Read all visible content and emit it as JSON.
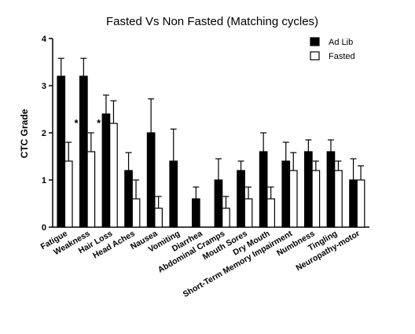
{
  "chart_data": {
    "type": "bar",
    "title": "Fasted  Vs Non Fasted  (Matching cycles)",
    "xlabel": "",
    "ylabel": "CTC Grade",
    "ylim": [
      0,
      4
    ],
    "yticks": [
      0,
      1,
      2,
      3,
      4
    ],
    "grid": false,
    "legend_position": "top-right",
    "categories": [
      "Fatigue",
      "Weakness",
      "Hair Loss",
      "Head Aches",
      "Nausea",
      "Vomiting",
      "Diarrhea",
      "Abdominal Cramps",
      "Mouth Sores",
      "Dry Mouth",
      "Short-Term Memory Impairment",
      "Numbness",
      "Tingling",
      "Neuropathy-motor"
    ],
    "series": [
      {
        "name": "Ad Lib",
        "fill": "#000000",
        "values": [
          3.2,
          3.2,
          2.4,
          1.2,
          2.0,
          1.4,
          0.6,
          1.0,
          1.2,
          1.6,
          1.4,
          1.6,
          1.6,
          1.0
        ],
        "error": [
          0.38,
          0.38,
          0.4,
          0.38,
          0.72,
          0.68,
          0.25,
          0.45,
          0.2,
          0.4,
          0.4,
          0.25,
          0.25,
          0.45
        ]
      },
      {
        "name": "Fasted",
        "fill": "#ffffff",
        "values": [
          1.4,
          1.6,
          2.2,
          0.6,
          0.4,
          0.0,
          0.0,
          0.4,
          0.6,
          0.6,
          1.2,
          1.2,
          1.2,
          1.0
        ],
        "error": [
          0.4,
          0.4,
          0.48,
          0.4,
          0.25,
          0,
          0,
          0.25,
          0.25,
          0.25,
          0.38,
          0.2,
          0.2,
          0.3
        ]
      }
    ],
    "annotations": [
      {
        "category": "Fatigue",
        "text": "*"
      },
      {
        "category": "Weakness",
        "text": "*"
      }
    ]
  }
}
